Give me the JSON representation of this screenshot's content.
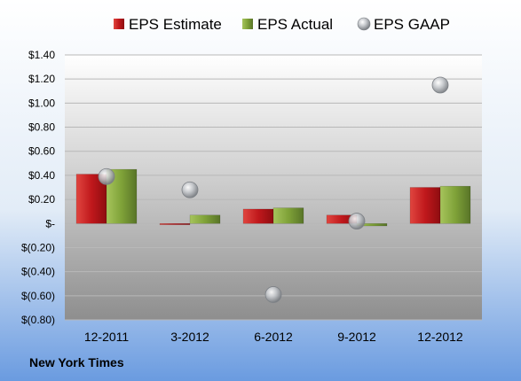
{
  "company": "New York Times",
  "chart_data": {
    "type": "bar",
    "categories": [
      "12-2011",
      "3-2012",
      "6-2012",
      "9-2012",
      "12-2012"
    ],
    "series": [
      {
        "name": "EPS Estimate",
        "values": [
          0.41,
          -0.01,
          0.12,
          0.07,
          0.3
        ],
        "color": "#c0181c"
      },
      {
        "name": "EPS Actual",
        "values": [
          0.45,
          0.07,
          0.13,
          -0.02,
          0.31
        ],
        "color": "#7fa238"
      },
      {
        "name": "EPS GAAP",
        "values": [
          0.39,
          0.28,
          -0.59,
          0.02,
          1.15
        ],
        "color": "#a9adb3",
        "mark": "scatter"
      }
    ],
    "ylim": [
      -0.8,
      1.4
    ],
    "yticks": [
      1.4,
      1.2,
      1.0,
      0.8,
      0.6,
      0.4,
      0.2,
      0,
      -0.2,
      -0.4,
      -0.6,
      -0.8
    ],
    "ytick_labels": [
      "$1.40",
      "$1.20",
      "$1.00",
      "$0.80",
      "$0.60",
      "$0.40",
      "$0.20",
      "$-",
      "$(0.20)",
      "$(0.40)",
      "$(0.60)",
      "$(0.80)"
    ],
    "grid": true,
    "legend": "top"
  }
}
